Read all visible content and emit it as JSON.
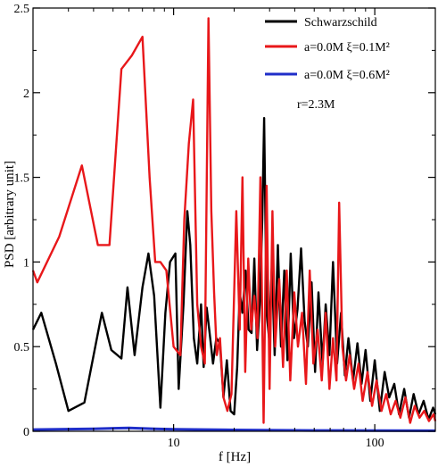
{
  "chart_data": {
    "type": "line",
    "xlabel": "f [Hz]",
    "ylabel": "PSD [arbitrary unit]",
    "xscale": "log",
    "xlim": [
      2,
      200
    ],
    "ylim": [
      0,
      2.5
    ],
    "x_ticks": [
      {
        "value": 10,
        "label": "10"
      },
      {
        "value": 100,
        "label": "100"
      }
    ],
    "y_ticks": [
      {
        "value": 0,
        "label": "0"
      },
      {
        "value": 0.5,
        "label": "0.5"
      },
      {
        "value": 1,
        "label": "1"
      },
      {
        "value": 1.5,
        "label": "1.5"
      },
      {
        "value": 2,
        "label": "2"
      },
      {
        "value": 2.5,
        "label": "2.5"
      }
    ],
    "grid": false,
    "legend_position": "top-right",
    "annotation": "r=2.3M",
    "series": [
      {
        "name": "Schwarzschild",
        "color": "#000000",
        "x": [
          2.0,
          2.2,
          2.6,
          3.0,
          3.6,
          4.4,
          4.9,
          5.5,
          5.9,
          6.4,
          7.0,
          7.5,
          8.0,
          8.6,
          9.1,
          9.6,
          10.2,
          10.6,
          11.2,
          11.7,
          12.1,
          12.6,
          13.1,
          13.7,
          14.1,
          14.6,
          15.1,
          15.7,
          16.3,
          17.0,
          17.7,
          18.4,
          19.2,
          20.0,
          20.7,
          21.3,
          22.0,
          22.8,
          23.6,
          24.4,
          25.2,
          26.0,
          26.8,
          27.6,
          28.2,
          29.0,
          29.8,
          30.8,
          31.8,
          33.0,
          34.2,
          35.5,
          36.8,
          38.2,
          39.7,
          41.3,
          43.0,
          44.8,
          46.5,
          48.5,
          50.5,
          52.5,
          55.0,
          57.0,
          59.5,
          62.0,
          65.0,
          68.0,
          71.0,
          74.0,
          78.0,
          82.0,
          86.0,
          90.0,
          95.0,
          100.0,
          106.0,
          112.0,
          118.0,
          125.0,
          132.0,
          140.0,
          148.0,
          156.0,
          165.0,
          175.0,
          185.0,
          195.0,
          200.0
        ],
        "y": [
          0.6,
          0.7,
          0.4,
          0.12,
          0.17,
          0.7,
          0.48,
          0.43,
          0.85,
          0.45,
          0.85,
          1.05,
          0.8,
          0.14,
          0.7,
          1.0,
          1.05,
          0.25,
          0.75,
          1.3,
          1.1,
          0.55,
          0.4,
          0.75,
          0.38,
          0.73,
          0.58,
          0.4,
          0.55,
          0.52,
          0.2,
          0.42,
          0.12,
          0.1,
          0.38,
          0.82,
          0.7,
          0.95,
          0.6,
          0.58,
          1.02,
          0.48,
          0.75,
          1.25,
          1.85,
          0.7,
          0.55,
          0.98,
          0.45,
          1.1,
          0.5,
          0.95,
          0.42,
          1.05,
          0.55,
          0.72,
          1.08,
          0.65,
          0.5,
          0.88,
          0.35,
          0.82,
          0.4,
          0.75,
          0.45,
          1.0,
          0.4,
          0.7,
          0.33,
          0.55,
          0.3,
          0.52,
          0.28,
          0.48,
          0.18,
          0.42,
          0.12,
          0.35,
          0.2,
          0.28,
          0.1,
          0.25,
          0.08,
          0.22,
          0.1,
          0.18,
          0.07,
          0.14,
          0.1
        ]
      },
      {
        "name": "a=0.0M  ξ=0.1M²",
        "color": "#e8171a",
        "x": [
          2.0,
          2.1,
          2.7,
          3.5,
          4.2,
          4.8,
          5.5,
          6.2,
          7.0,
          7.6,
          8.1,
          8.6,
          9.2,
          10.0,
          10.8,
          11.3,
          11.9,
          12.5,
          13.1,
          13.7,
          14.3,
          14.9,
          15.4,
          15.9,
          16.4,
          17.0,
          17.7,
          18.5,
          19.4,
          20.5,
          21.3,
          22.0,
          22.7,
          23.5,
          24.3,
          25.2,
          26.1,
          27.0,
          28.0,
          29.0,
          30.0,
          31.0,
          32.0,
          33.5,
          35.0,
          36.5,
          38.0,
          39.8,
          41.5,
          43.5,
          45.5,
          47.5,
          49.5,
          52.0,
          54.5,
          57.0,
          59.5,
          62.0,
          64.5,
          66.5,
          69.0,
          72.0,
          75.0,
          79.0,
          83.0,
          87.0,
          92.0,
          97.0,
          102.0,
          108.0,
          114.0,
          120.0,
          127.0,
          134.0,
          142.0,
          150.0,
          158.0,
          167.0,
          176.0,
          186.0,
          196.0,
          200.0
        ],
        "y": [
          0.95,
          0.88,
          1.15,
          1.57,
          1.1,
          1.1,
          2.14,
          2.22,
          2.33,
          1.5,
          1.0,
          1.0,
          0.95,
          0.5,
          0.45,
          1.25,
          1.7,
          1.96,
          0.75,
          0.5,
          0.4,
          2.44,
          1.3,
          0.82,
          0.45,
          0.55,
          0.2,
          0.12,
          0.22,
          1.3,
          0.6,
          1.5,
          0.35,
          1.02,
          0.6,
          0.8,
          0.55,
          1.5,
          0.05,
          1.45,
          0.25,
          1.3,
          0.5,
          0.9,
          0.38,
          0.95,
          0.3,
          0.82,
          0.5,
          0.7,
          0.28,
          0.95,
          0.4,
          0.6,
          0.3,
          0.7,
          0.25,
          0.55,
          0.3,
          1.35,
          0.5,
          0.3,
          0.45,
          0.25,
          0.4,
          0.18,
          0.35,
          0.15,
          0.3,
          0.12,
          0.22,
          0.1,
          0.18,
          0.08,
          0.2,
          0.05,
          0.15,
          0.08,
          0.12,
          0.06,
          0.1,
          0.06
        ]
      },
      {
        "name": "a=0.0M  ξ=0.6M²",
        "color": "#1f2ec9",
        "x": [
          2.0,
          4.0,
          6.0,
          8.0,
          10.0,
          20.0,
          50.0,
          100.0,
          200.0
        ],
        "y": [
          0.01,
          0.015,
          0.02,
          0.015,
          0.012,
          0.008,
          0.005,
          0.004,
          0.003
        ]
      }
    ]
  }
}
